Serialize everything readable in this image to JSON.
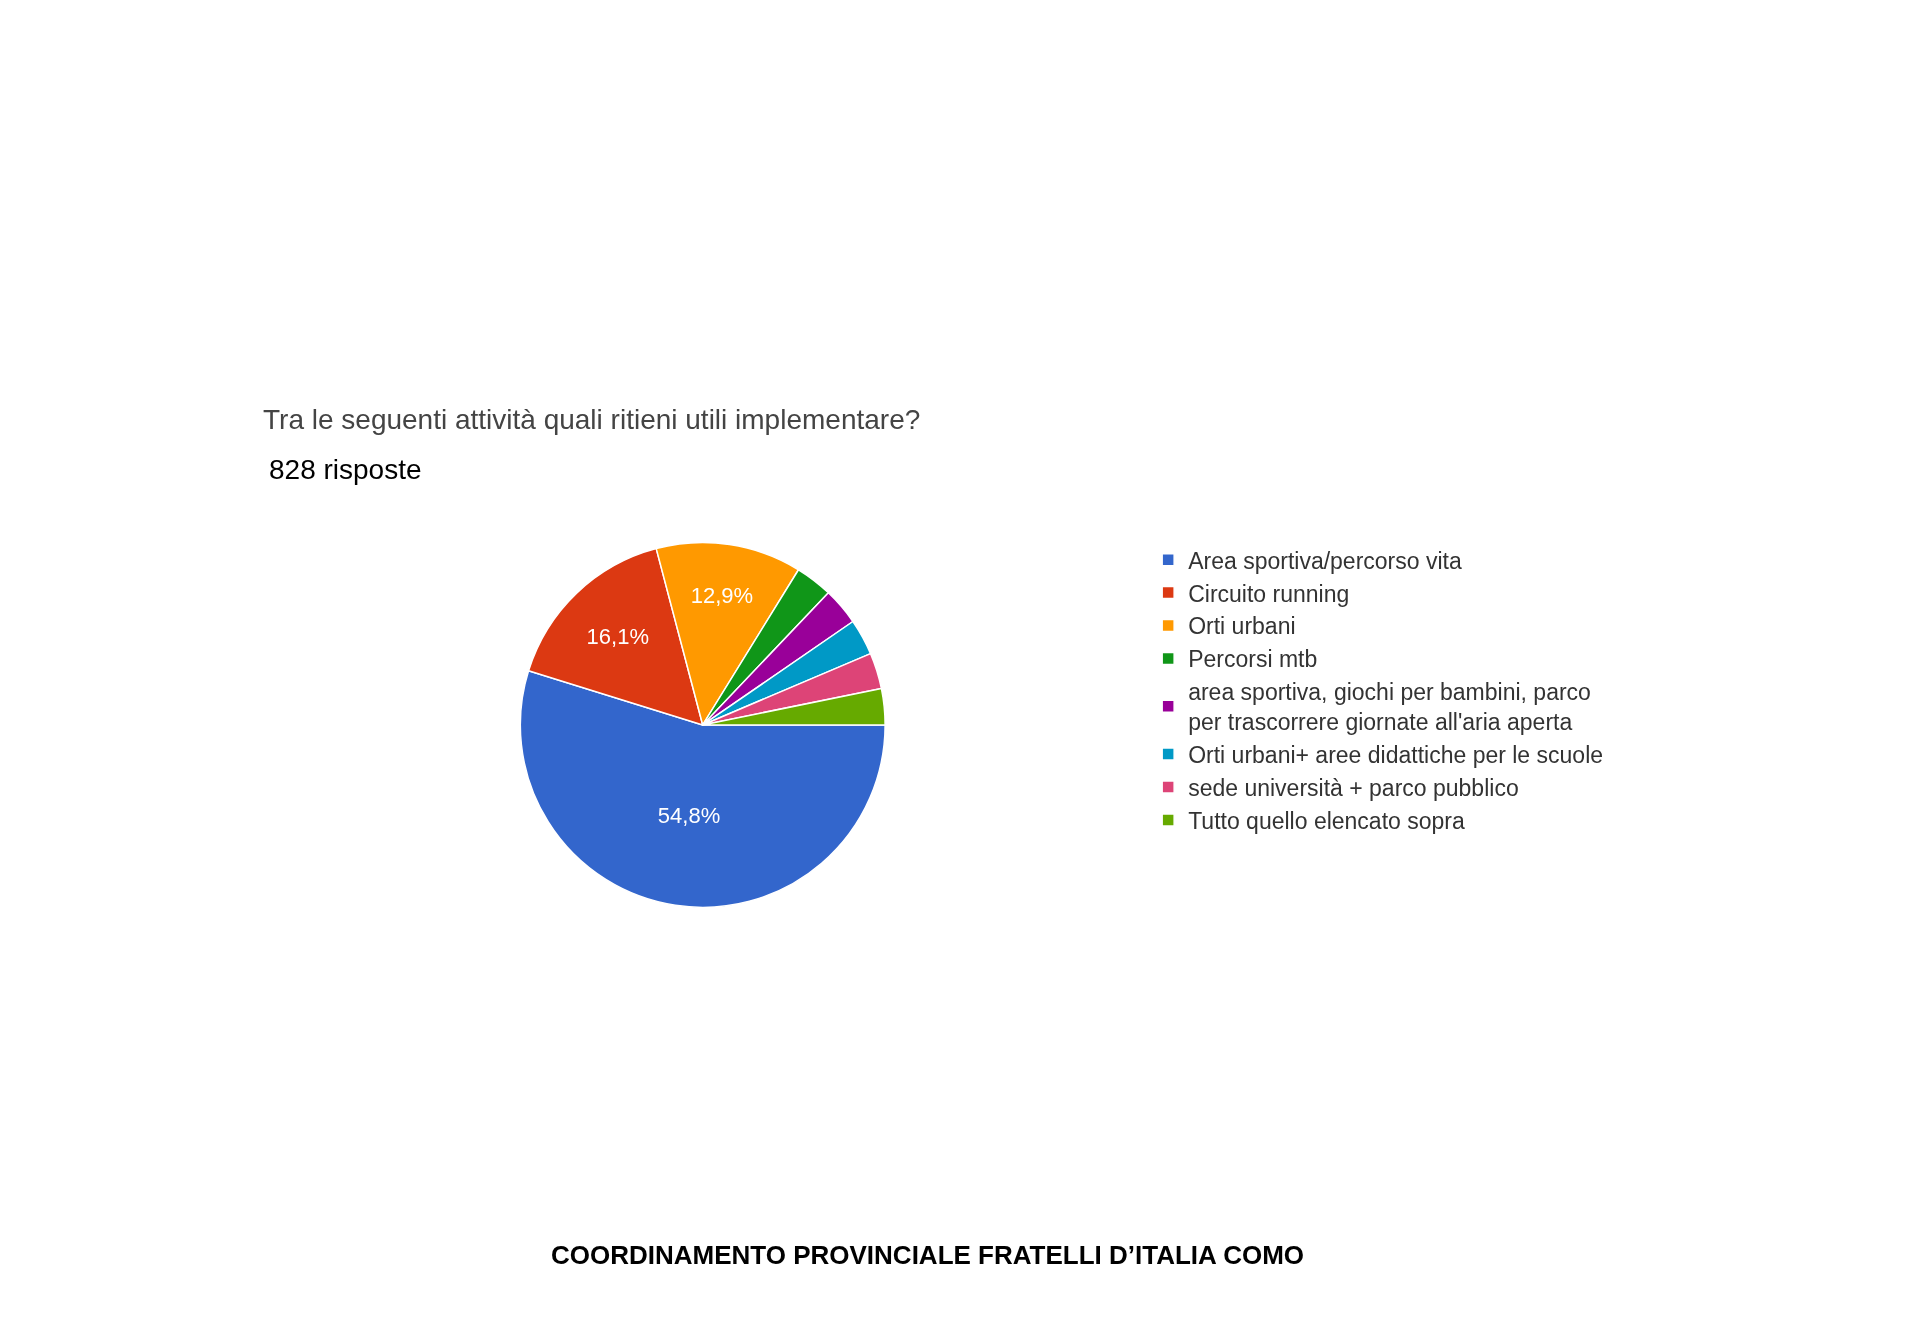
{
  "chart_data": {
    "type": "pie",
    "title": "Tra le seguenti attività quali ritieni utili implementare?",
    "subtitle": "828 risposte",
    "categories": [
      "Area sportiva/percorso vita",
      "Circuito running",
      "Orti urbani",
      "Percorsi mtb",
      "area sportiva, giochi per bambini, parco per trascorrere giornate all'aria aperta",
      "Orti urbani+ aree didattiche per le scuole",
      "sede università + parco pubblico",
      "Tutto quello elencato sopra"
    ],
    "values": [
      54.8,
      16.1,
      12.9,
      3.3,
      3.3,
      3.2,
      3.2,
      3.2
    ],
    "value_labels": [
      "54,8%",
      "16,1%",
      "12,9%",
      null,
      null,
      null,
      null,
      null
    ],
    "colors": [
      "#3366cc",
      "#dc3912",
      "#ff9900",
      "#109618",
      "#990099",
      "#0099c6",
      "#dd4477",
      "#66aa00"
    ],
    "legend": "right",
    "annotations": [
      "COORDINAMENTO PROVINCIALE FRATELLI D’ITALIA COMO"
    ]
  }
}
